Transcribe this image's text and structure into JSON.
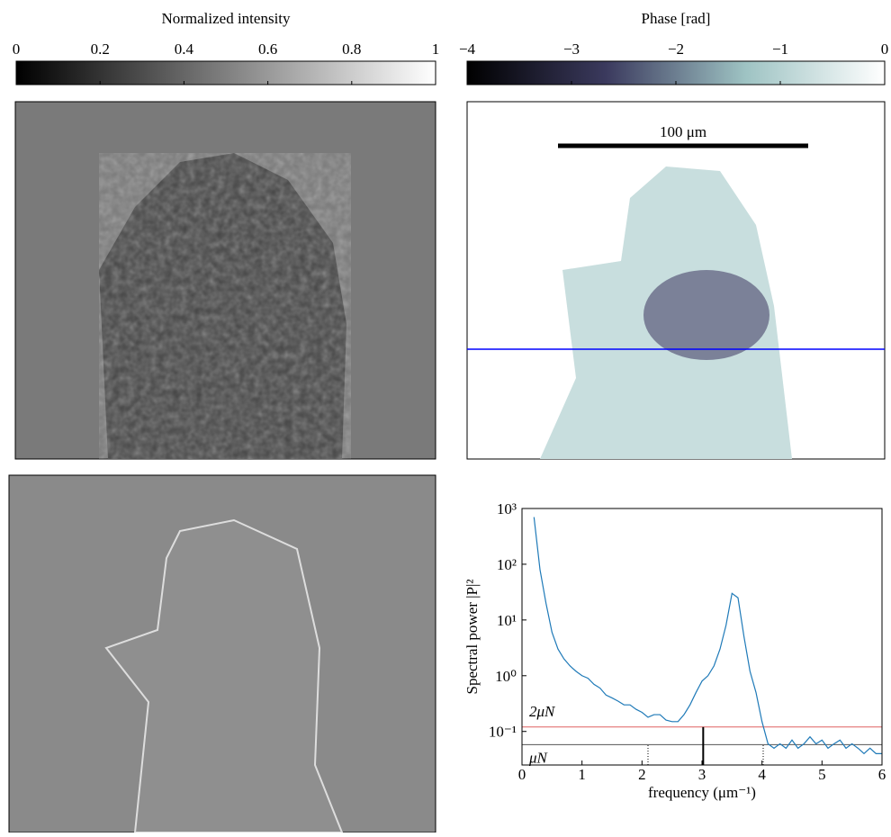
{
  "chart_data": [
    {
      "type": "colorbar",
      "title": "Normalized intensity",
      "xlim": [
        0,
        1
      ],
      "xticks": [
        0,
        0.2,
        0.4,
        0.6,
        0.8,
        1
      ],
      "colors": [
        "#000000",
        "#ffffff"
      ]
    },
    {
      "type": "colorbar",
      "title": "Phase [rad]",
      "xlim": [
        -4,
        0
      ],
      "xticks": [
        {
          "value": -4,
          "label": "−4"
        },
        {
          "value": -3,
          "label": "−3"
        },
        {
          "value": -2,
          "label": "−2"
        },
        {
          "value": -1,
          "label": "−1"
        },
        0
      ],
      "colors": [
        "#000000",
        "#3b3a5e",
        "#9ec3c3",
        "#ffffff"
      ]
    },
    {
      "type": "line",
      "ylabel": "Spectral power |P|²",
      "xlabel": "frequency (μm⁻¹)",
      "log_y": true,
      "xlim": [
        0,
        6
      ],
      "xticks": [
        0,
        1,
        2,
        3,
        4,
        5,
        6
      ],
      "ylim": [
        0.025,
        1000
      ],
      "yticks": [
        {
          "value": 0.1,
          "label": "10⁻¹"
        },
        {
          "value": 1,
          "label": "10⁰"
        },
        {
          "value": 10,
          "label": "10¹"
        },
        {
          "value": 100,
          "label": "10²"
        },
        {
          "value": 1000,
          "label": "10³"
        }
      ],
      "x": [
        0.2,
        0.3,
        0.4,
        0.5,
        0.6,
        0.7,
        0.8,
        0.9,
        1.0,
        1.1,
        1.2,
        1.3,
        1.4,
        1.5,
        1.6,
        1.7,
        1.8,
        1.9,
        2.0,
        2.1,
        2.2,
        2.3,
        2.4,
        2.5,
        2.6,
        2.7,
        2.8,
        2.9,
        3.0,
        3.1,
        3.2,
        3.3,
        3.4,
        3.5,
        3.6,
        3.7,
        3.8,
        3.9,
        4.0,
        4.1,
        4.2,
        4.3,
        4.4,
        4.5,
        4.6,
        4.7,
        4.8,
        4.9,
        5.0,
        5.1,
        5.2,
        5.3,
        5.4,
        5.5,
        5.6,
        5.7,
        5.8,
        5.9,
        6.0
      ],
      "series": [
        {
          "color": "#1f7ab8",
          "values": [
            700,
            80,
            20,
            6,
            3,
            2,
            1.5,
            1.2,
            1.0,
            0.9,
            0.7,
            0.6,
            0.45,
            0.4,
            0.35,
            0.3,
            0.3,
            0.25,
            0.22,
            0.18,
            0.2,
            0.2,
            0.16,
            0.15,
            0.15,
            0.2,
            0.3,
            0.5,
            0.8,
            1.0,
            1.5,
            3,
            8,
            30,
            25,
            5,
            1.2,
            0.5,
            0.15,
            0.06,
            0.05,
            0.06,
            0.05,
            0.07,
            0.05,
            0.06,
            0.08,
            0.06,
            0.07,
            0.05,
            0.06,
            0.07,
            0.05,
            0.06,
            0.05,
            0.04,
            0.05,
            0.04,
            0.04
          ]
        }
      ],
      "hlines": [
        {
          "value": 0.12,
          "label": "2μN",
          "color": "#e06060"
        },
        {
          "value": 0.058,
          "label": "μN",
          "color": "#555555"
        }
      ],
      "markers": [
        {
          "x": 2.1,
          "y": 0.058,
          "style": "dotted"
        },
        {
          "x": 3.02,
          "y": 0.12,
          "style": "solid"
        },
        {
          "x": 4.02,
          "y": 0.058,
          "style": "dotted"
        }
      ]
    }
  ],
  "phase_image": {
    "scale_bar": "100 μm"
  }
}
